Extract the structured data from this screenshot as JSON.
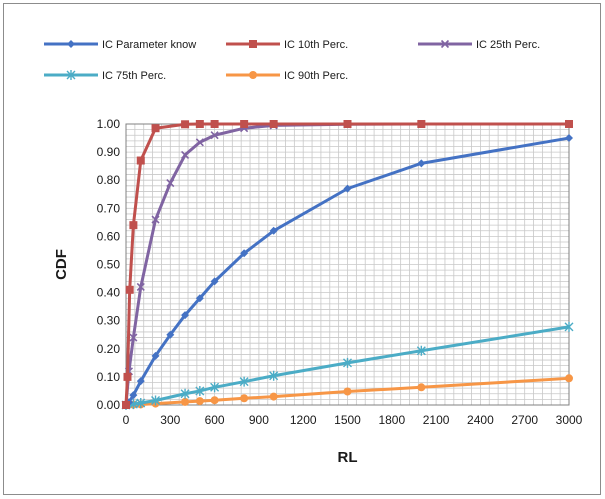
{
  "chart_data": {
    "type": "line",
    "title": "",
    "xlabel": "RL",
    "ylabel": "CDF",
    "xlim": [
      0,
      3000
    ],
    "ylim": [
      0,
      1
    ],
    "x_ticks": [
      "0",
      "300",
      "600",
      "900",
      "1200",
      "1500",
      "1800",
      "2100",
      "2400",
      "2700",
      "3000"
    ],
    "y_ticks": [
      "0.00",
      "0.10",
      "0.20",
      "0.30",
      "0.40",
      "0.50",
      "0.60",
      "0.70",
      "0.80",
      "0.90",
      "1.00"
    ],
    "grid": true,
    "legend_position": "top",
    "series": [
      {
        "name": "IC Parameter know",
        "color": "#4472c4",
        "marker": "diamond",
        "points": [
          [
            0,
            0.0
          ],
          [
            20,
            0.01
          ],
          [
            50,
            0.035
          ],
          [
            100,
            0.085
          ],
          [
            200,
            0.175
          ],
          [
            300,
            0.25
          ],
          [
            400,
            0.32
          ],
          [
            500,
            0.38
          ],
          [
            600,
            0.44
          ],
          [
            800,
            0.54
          ],
          [
            1000,
            0.62
          ],
          [
            1500,
            0.77
          ],
          [
            2000,
            0.86
          ],
          [
            3000,
            0.95
          ]
        ]
      },
      {
        "name": "IC 10th Perc.",
        "color": "#c0504d",
        "marker": "square",
        "points": [
          [
            0,
            0.0
          ],
          [
            10,
            0.1
          ],
          [
            25,
            0.41
          ],
          [
            50,
            0.64
          ],
          [
            100,
            0.87
          ],
          [
            200,
            0.985
          ],
          [
            400,
            0.999
          ],
          [
            500,
            1.0
          ],
          [
            600,
            1.0
          ],
          [
            800,
            1.0
          ],
          [
            1000,
            1.0
          ],
          [
            1500,
            1.0
          ],
          [
            2000,
            1.0
          ],
          [
            3000,
            1.0
          ]
        ]
      },
      {
        "name": "IC 25th Perc.",
        "color": "#8064a2",
        "marker": "x",
        "points": [
          [
            0,
            0.0
          ],
          [
            20,
            0.12
          ],
          [
            50,
            0.24
          ],
          [
            100,
            0.42
          ],
          [
            200,
            0.66
          ],
          [
            300,
            0.79
          ],
          [
            400,
            0.89
          ],
          [
            500,
            0.935
          ],
          [
            600,
            0.96
          ],
          [
            800,
            0.985
          ],
          [
            1000,
            0.995
          ],
          [
            1500,
            0.999
          ],
          [
            2000,
            1.0
          ],
          [
            3000,
            1.0
          ]
        ]
      },
      {
        "name": "IC 75th Perc.",
        "color": "#4bacc6",
        "marker": "asterisk",
        "points": [
          [
            0,
            0.0
          ],
          [
            50,
            0.003
          ],
          [
            100,
            0.007
          ],
          [
            200,
            0.016
          ],
          [
            400,
            0.04
          ],
          [
            500,
            0.05
          ],
          [
            600,
            0.063
          ],
          [
            800,
            0.083
          ],
          [
            1000,
            0.104
          ],
          [
            1500,
            0.15
          ],
          [
            2000,
            0.193
          ],
          [
            3000,
            0.278
          ]
        ]
      },
      {
        "name": "IC 90th Perc.",
        "color": "#f79646",
        "marker": "circle",
        "points": [
          [
            0,
            0.0
          ],
          [
            50,
            0.001
          ],
          [
            100,
            0.002
          ],
          [
            200,
            0.005
          ],
          [
            400,
            0.011
          ],
          [
            500,
            0.014
          ],
          [
            600,
            0.017
          ],
          [
            800,
            0.024
          ],
          [
            1000,
            0.03
          ],
          [
            1500,
            0.048
          ],
          [
            2000,
            0.063
          ],
          [
            3000,
            0.095
          ]
        ]
      }
    ]
  }
}
